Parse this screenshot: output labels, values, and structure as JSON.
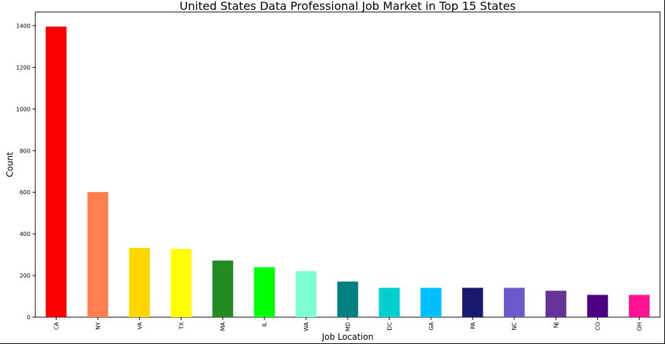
{
  "chart_data": {
    "type": "bar",
    "title": "United States Data Professional Job Market in Top 15 States",
    "xlabel": "Job Location",
    "ylabel": "Count",
    "categories": [
      "CA",
      "NY",
      "VA",
      "TX",
      "MA",
      "IL",
      "WA",
      "MD",
      "DC",
      "GA",
      "PA",
      "NC",
      "NJ",
      "CO",
      "OH"
    ],
    "values": [
      1396,
      601,
      333,
      328,
      272,
      240,
      221,
      171,
      141,
      141,
      141,
      141,
      127,
      107,
      107
    ],
    "colors": [
      "#ff0000",
      "#ff7f50",
      "#ffd700",
      "#ffff00",
      "#228b22",
      "#00ff00",
      "#7fffd4",
      "#008080",
      "#00ced1",
      "#00bfff",
      "#191970",
      "#6a5acd",
      "#663399",
      "#4b0082",
      "#ff1493"
    ],
    "yticks": [
      0,
      200,
      400,
      600,
      800,
      1000,
      1200,
      1400
    ],
    "ylim": [
      0,
      1466
    ],
    "grid": false
  }
}
